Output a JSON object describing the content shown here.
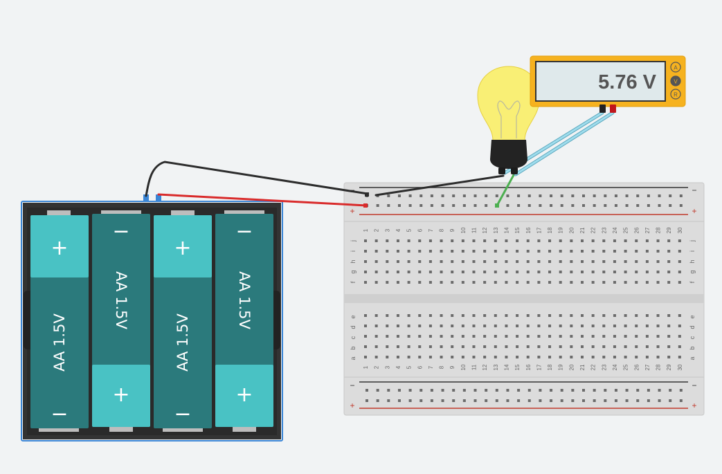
{
  "battery_pack": {
    "cells": [
      {
        "label": "AA 1.5V",
        "plus": "+",
        "minus": "−",
        "orientation": "plus-top"
      },
      {
        "label": "AA 1.5V",
        "plus": "+",
        "minus": "−",
        "orientation": "minus-top"
      },
      {
        "label": "AA 1.5V",
        "plus": "+",
        "minus": "−",
        "orientation": "plus-top"
      },
      {
        "label": "AA 1.5V",
        "plus": "+",
        "minus": "−",
        "orientation": "minus-top"
      }
    ]
  },
  "multimeter": {
    "reading": "5.76 V",
    "modes": [
      "A",
      "V",
      "R"
    ],
    "selected_mode": "V"
  },
  "breadboard": {
    "rail_minus": "−",
    "rail_plus": "+",
    "row_labels_top": [
      "j",
      "i",
      "h",
      "g",
      "f"
    ],
    "row_labels_bottom": [
      "e",
      "d",
      "c",
      "b",
      "a"
    ],
    "column_count": 30
  },
  "colors": {
    "background": "#f1f3f4",
    "battery_teal": "#2b7a7c",
    "battery_light_teal": "#49c2c4",
    "holder": "#333333",
    "selection_blue": "#3b86d6",
    "wire_black": "#2c2c2c",
    "wire_red": "#d92b2b",
    "wire_green": "#4caf50",
    "probe_blue": "#8fd3e6",
    "meter_orange": "#f6b21f",
    "bulb_yellow": "#f9ef75"
  }
}
